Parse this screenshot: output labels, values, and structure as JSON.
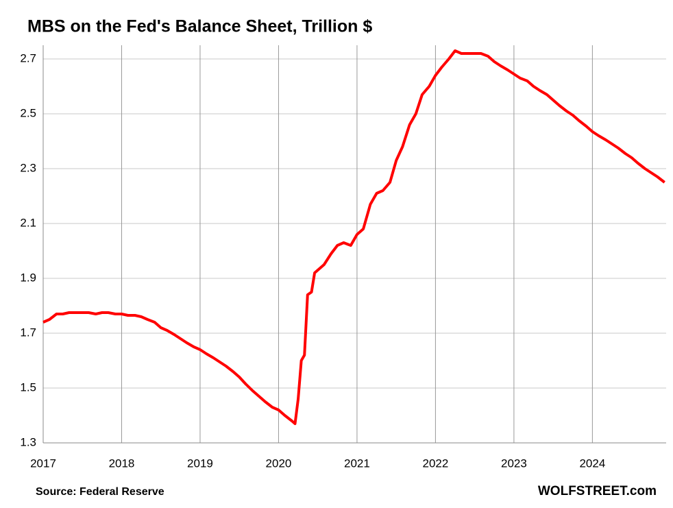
{
  "chart_data": {
    "type": "line",
    "title": "MBS on the Fed's Balance Sheet, Trillion $",
    "source": "Source: Federal Reserve",
    "brand": "WOLFSTREET.com",
    "xlim": [
      2017,
      2024.94
    ],
    "xticks": [
      2017,
      2018,
      2019,
      2020,
      2021,
      2022,
      2023,
      2024
    ],
    "ylim": [
      1.3,
      2.75
    ],
    "yticks": [
      1.3,
      1.5,
      1.7,
      1.9,
      2.1,
      2.3,
      2.5,
      2.7
    ],
    "grid": true,
    "x": [
      2017.0,
      2017.08,
      2017.17,
      2017.25,
      2017.33,
      2017.42,
      2017.5,
      2017.58,
      2017.67,
      2017.75,
      2017.83,
      2017.92,
      2018.0,
      2018.08,
      2018.17,
      2018.25,
      2018.33,
      2018.42,
      2018.5,
      2018.58,
      2018.67,
      2018.75,
      2018.83,
      2018.92,
      2019.0,
      2019.08,
      2019.17,
      2019.25,
      2019.33,
      2019.42,
      2019.5,
      2019.58,
      2019.67,
      2019.75,
      2019.83,
      2019.92,
      2020.0,
      2020.08,
      2020.17,
      2020.21,
      2020.25,
      2020.29,
      2020.33,
      2020.37,
      2020.42,
      2020.46,
      2020.58,
      2020.67,
      2020.75,
      2020.83,
      2020.92,
      2021.0,
      2021.08,
      2021.17,
      2021.25,
      2021.33,
      2021.42,
      2021.5,
      2021.58,
      2021.67,
      2021.75,
      2021.83,
      2021.92,
      2022.0,
      2022.08,
      2022.17,
      2022.25,
      2022.33,
      2022.42,
      2022.5,
      2022.58,
      2022.67,
      2022.75,
      2022.83,
      2022.92,
      2023.0,
      2023.08,
      2023.17,
      2023.25,
      2023.33,
      2023.42,
      2023.5,
      2023.58,
      2023.67,
      2023.75,
      2023.83,
      2023.92,
      2024.0,
      2024.08,
      2024.17,
      2024.25,
      2024.33,
      2024.42,
      2024.5,
      2024.58,
      2024.67,
      2024.75,
      2024.83,
      2024.92
    ],
    "series": [
      {
        "color": "#ff0000",
        "values": [
          1.74,
          1.75,
          1.77,
          1.77,
          1.775,
          1.775,
          1.775,
          1.775,
          1.77,
          1.775,
          1.775,
          1.77,
          1.77,
          1.765,
          1.765,
          1.76,
          1.75,
          1.74,
          1.72,
          1.71,
          1.695,
          1.68,
          1.665,
          1.65,
          1.64,
          1.625,
          1.61,
          1.595,
          1.58,
          1.56,
          1.54,
          1.515,
          1.49,
          1.47,
          1.45,
          1.43,
          1.42,
          1.4,
          1.38,
          1.37,
          1.46,
          1.6,
          1.62,
          1.84,
          1.85,
          1.92,
          1.95,
          1.99,
          2.02,
          2.03,
          2.02,
          2.06,
          2.08,
          2.17,
          2.21,
          2.22,
          2.25,
          2.33,
          2.38,
          2.46,
          2.5,
          2.57,
          2.6,
          2.64,
          2.67,
          2.7,
          2.73,
          2.72,
          2.72,
          2.72,
          2.72,
          2.71,
          2.69,
          2.675,
          2.66,
          2.645,
          2.63,
          2.62,
          2.6,
          2.585,
          2.57,
          2.55,
          2.53,
          2.51,
          2.495,
          2.475,
          2.455,
          2.435,
          2.42,
          2.405,
          2.39,
          2.375,
          2.355,
          2.34,
          2.32,
          2.3,
          2.285,
          2.27,
          2.25
        ]
      }
    ]
  }
}
